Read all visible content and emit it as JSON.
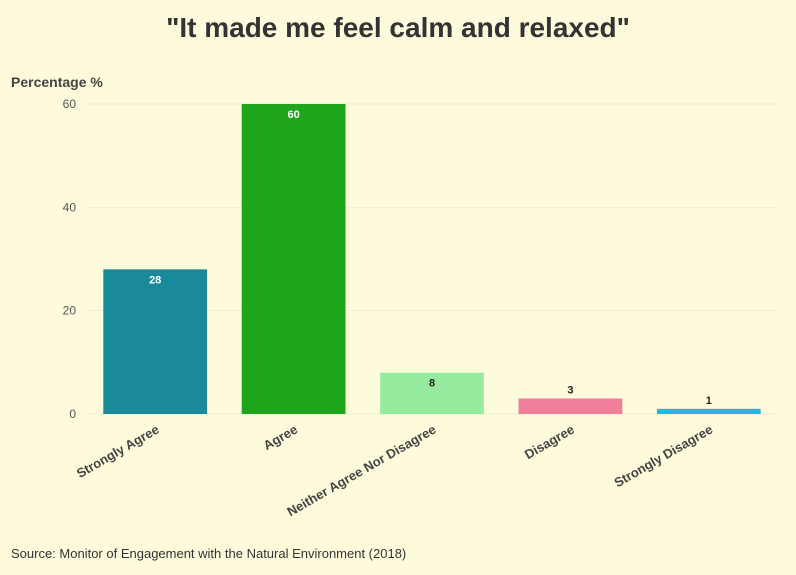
{
  "chart_data": {
    "type": "bar",
    "title": "\"It made me feel calm and relaxed\"",
    "ylabel": "Percentage %",
    "xlabel": "",
    "source": "Source: Monitor of Engagement with the Natural Environment (2018)",
    "categories": [
      "Strongly Agree",
      "Agree",
      "Neither Agree Nor Disagree",
      "Disagree",
      "Strongly Disagree"
    ],
    "values": [
      28,
      60,
      8,
      3,
      1
    ],
    "colors": [
      "#1a8a9a",
      "#1ea51a",
      "#96eb9f",
      "#f07f9c",
      "#2ab6dc"
    ],
    "label_colors": [
      "#ffffff",
      "#ffffff",
      "#222222",
      "#222222",
      "#222222"
    ],
    "ylim": [
      0,
      60
    ],
    "yticks": [
      0,
      20,
      40,
      60
    ],
    "grid": true,
    "legend": "none"
  }
}
